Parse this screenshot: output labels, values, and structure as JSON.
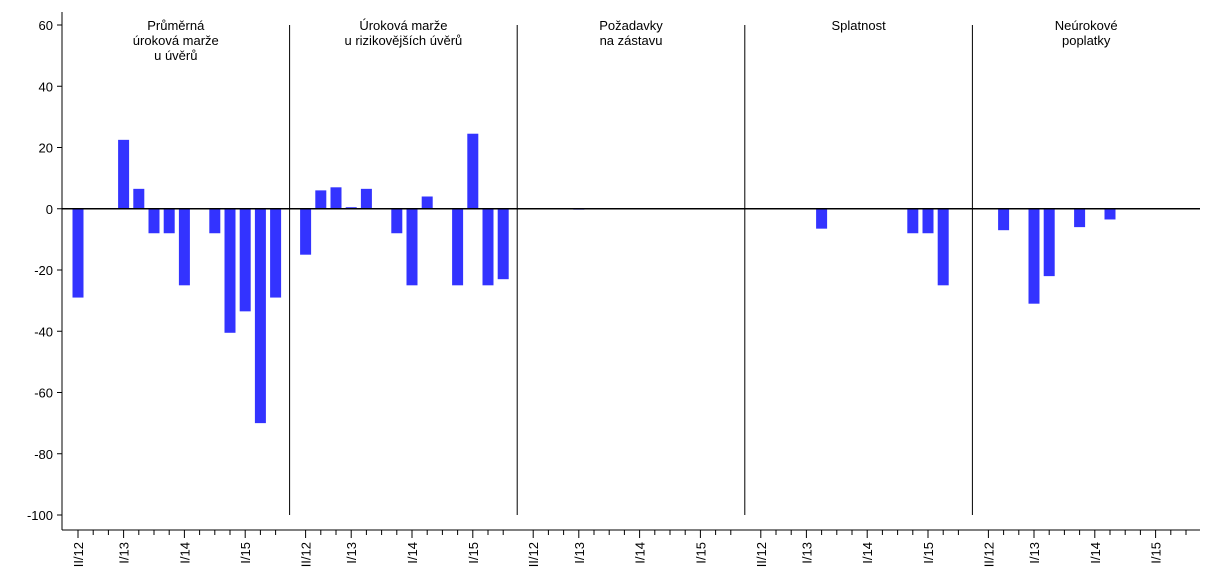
{
  "chart_data": {
    "type": "bar",
    "color": "#3333ff",
    "grid": false,
    "ylim": [
      -100,
      60
    ],
    "yticks": [
      -100,
      -80,
      -60,
      -40,
      -20,
      0,
      20,
      40,
      60
    ],
    "categories": [
      "II/12",
      null,
      null,
      "I/13",
      null,
      null,
      null,
      "I/14",
      null,
      null,
      null,
      "I/15",
      null,
      null
    ],
    "panels": [
      {
        "title": [
          "Průměrná",
          "úroková marže",
          "u úvěrů"
        ],
        "values": [
          -29,
          0,
          0,
          22.5,
          6.5,
          -8,
          -8,
          -25,
          0,
          -8,
          -40.5,
          -33.5,
          -70,
          -29
        ]
      },
      {
        "title": [
          "Úroková marže",
          "u rizikovějších úvěrů"
        ],
        "values": [
          -15,
          6,
          7,
          0.5,
          6.5,
          0,
          -8,
          -25,
          4,
          0,
          -25,
          24.5,
          -25,
          -23
        ]
      },
      {
        "title": [
          "Požadavky",
          "na zástavu"
        ],
        "values": [
          0,
          0,
          0,
          -0.3,
          0,
          0,
          0,
          0,
          0,
          0,
          0,
          0,
          0,
          0
        ]
      },
      {
        "title": [
          "Splatnost"
        ],
        "values": [
          0,
          0,
          0,
          0,
          -6.5,
          0,
          0,
          0,
          0,
          0,
          -8,
          -8,
          -25,
          0
        ]
      },
      {
        "title": [
          "Neúrokové",
          "poplatky"
        ],
        "values": [
          0,
          -7,
          0,
          -31,
          -22,
          0,
          -6,
          0,
          -3.5,
          0,
          0,
          0,
          0,
          0
        ]
      }
    ]
  }
}
